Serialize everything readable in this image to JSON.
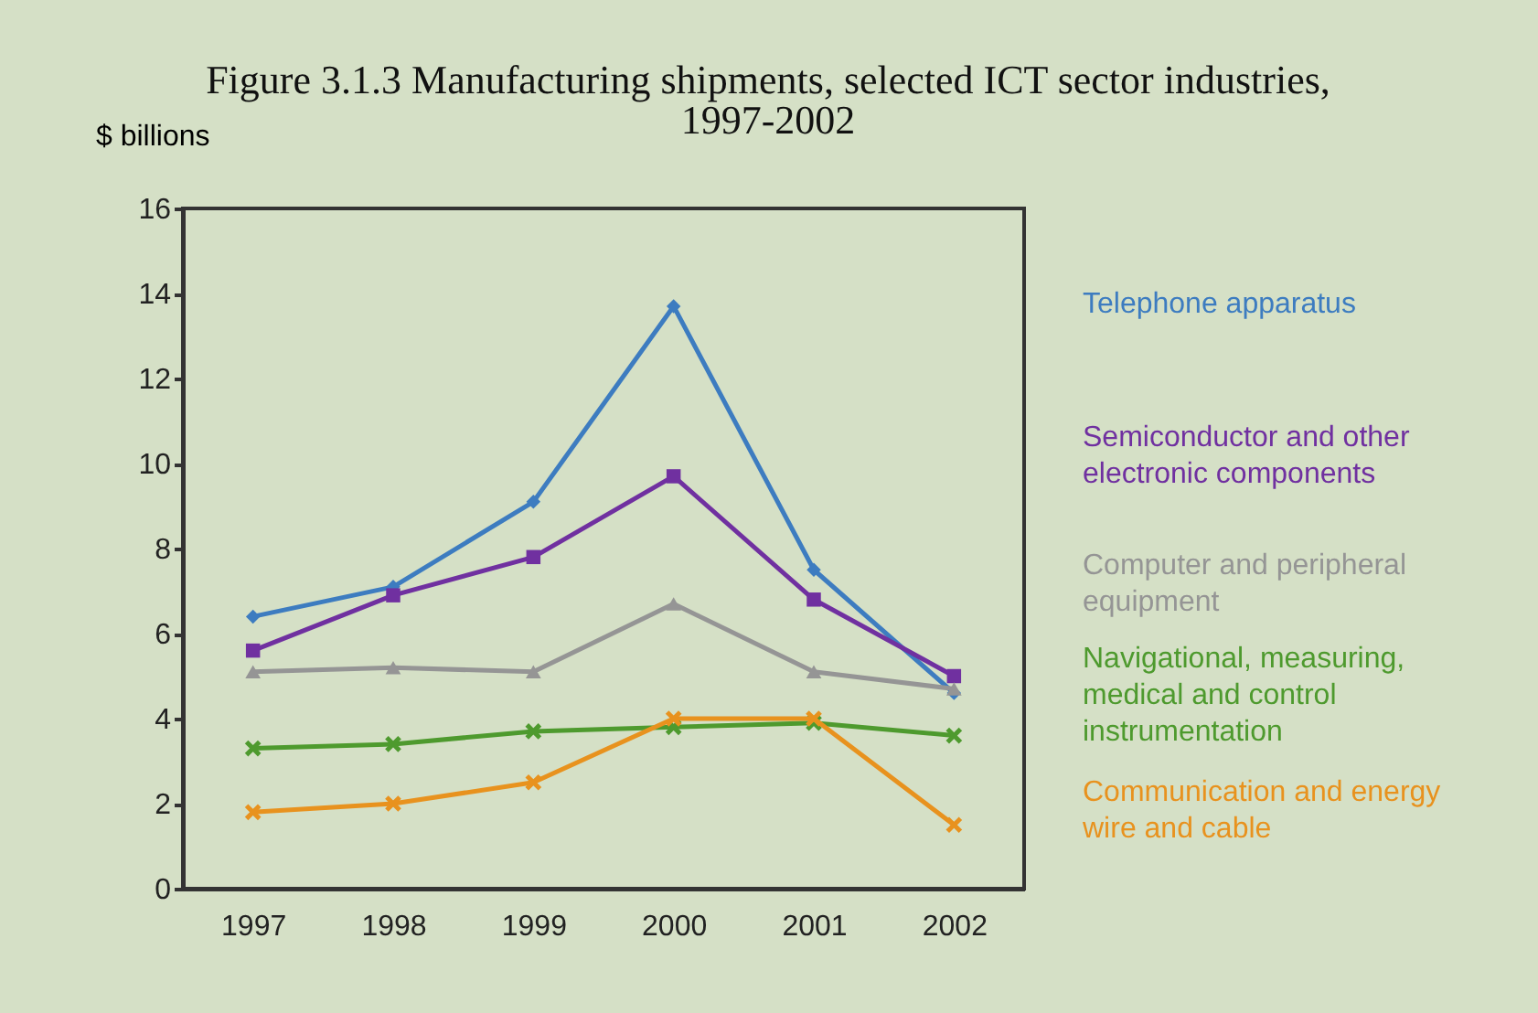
{
  "chart_data": {
    "type": "line",
    "title": "Figure 3.1.3  Manufacturing shipments, selected ICT sector industries, 1997-2002",
    "ylabel": "$ billions",
    "categories": [
      "1997",
      "1998",
      "1999",
      "2000",
      "2001",
      "2002"
    ],
    "ylim": [
      0,
      16
    ],
    "yticks": [
      0,
      2,
      4,
      6,
      8,
      10,
      12,
      14,
      16
    ],
    "grid": false,
    "legend": "right",
    "line_style": "solid",
    "series": [
      {
        "name": "Telephone apparatus",
        "color": "#3d7cc0",
        "marker": "diamond",
        "values": [
          6.4,
          7.1,
          9.1,
          13.7,
          7.5,
          4.6
        ]
      },
      {
        "name": "Semiconductor and other electronic components",
        "color": "#7030a0",
        "marker": "square",
        "values": [
          5.6,
          6.9,
          7.8,
          9.7,
          6.8,
          5.0
        ]
      },
      {
        "name": "Computer and peripheral equipment",
        "color": "#959595",
        "marker": "triangle",
        "values": [
          5.1,
          5.2,
          5.1,
          6.7,
          5.1,
          4.7
        ]
      },
      {
        "name": "Navigational, measuring, medical and control instrumentation",
        "color": "#4e9a2e",
        "marker": "cross",
        "values": [
          3.3,
          3.4,
          3.7,
          3.8,
          3.9,
          3.6
        ]
      },
      {
        "name": "Communication and energy wire and cable",
        "color": "#e8921e",
        "marker": "cross",
        "values": [
          1.8,
          2.0,
          2.5,
          4.0,
          4.0,
          1.5
        ]
      }
    ]
  }
}
